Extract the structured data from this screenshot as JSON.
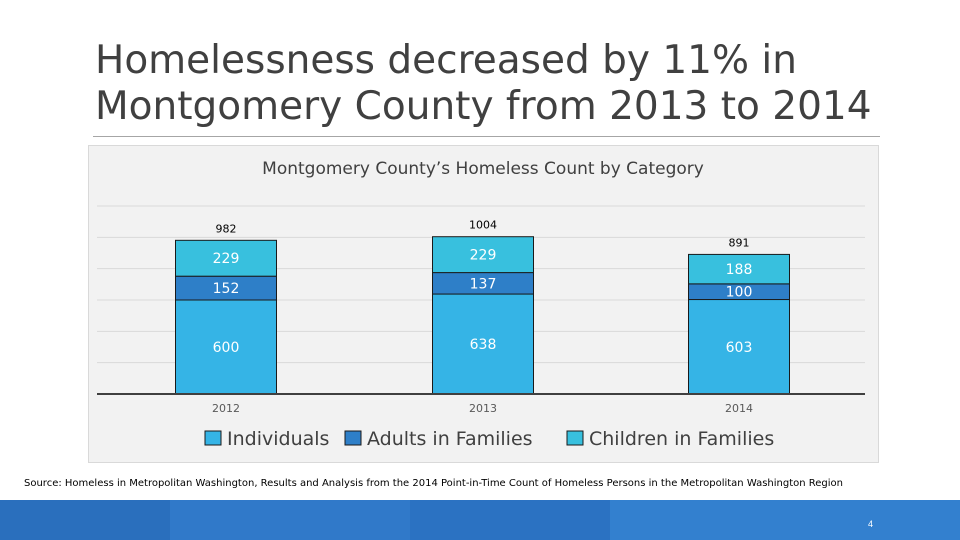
{
  "slide": {
    "title": "Homelessness decreased by 11% in Montgomery County from 2013 to 2014",
    "source": "Source: Homeless in Metropolitan Washington, Results and Analysis from the 2014 Point-in-Time Count of Homeless Persons in the Metropolitan Washington Region",
    "page_number": "4"
  },
  "colors": {
    "individuals": "#35b4e6",
    "adults_in_families": "#2e7fc8",
    "children_in_families": "#38c0de",
    "footer": "#2e75c6"
  },
  "chart_data": {
    "type": "bar",
    "stacked": true,
    "title": "Montgomery County’s Homeless Count by Category",
    "categories": [
      "2012",
      "2013",
      "2014"
    ],
    "series": [
      {
        "name": "Individuals",
        "values": [
          600,
          638,
          603
        ]
      },
      {
        "name": "Adults in Families",
        "values": [
          152,
          137,
          100
        ]
      },
      {
        "name": "Children in Families",
        "values": [
          229,
          229,
          188
        ]
      }
    ],
    "totals": [
      982,
      1004,
      891
    ],
    "xlabel": "",
    "ylabel": "",
    "ylim": [
      0,
      1200
    ],
    "legend": "bottom",
    "grid": true
  }
}
